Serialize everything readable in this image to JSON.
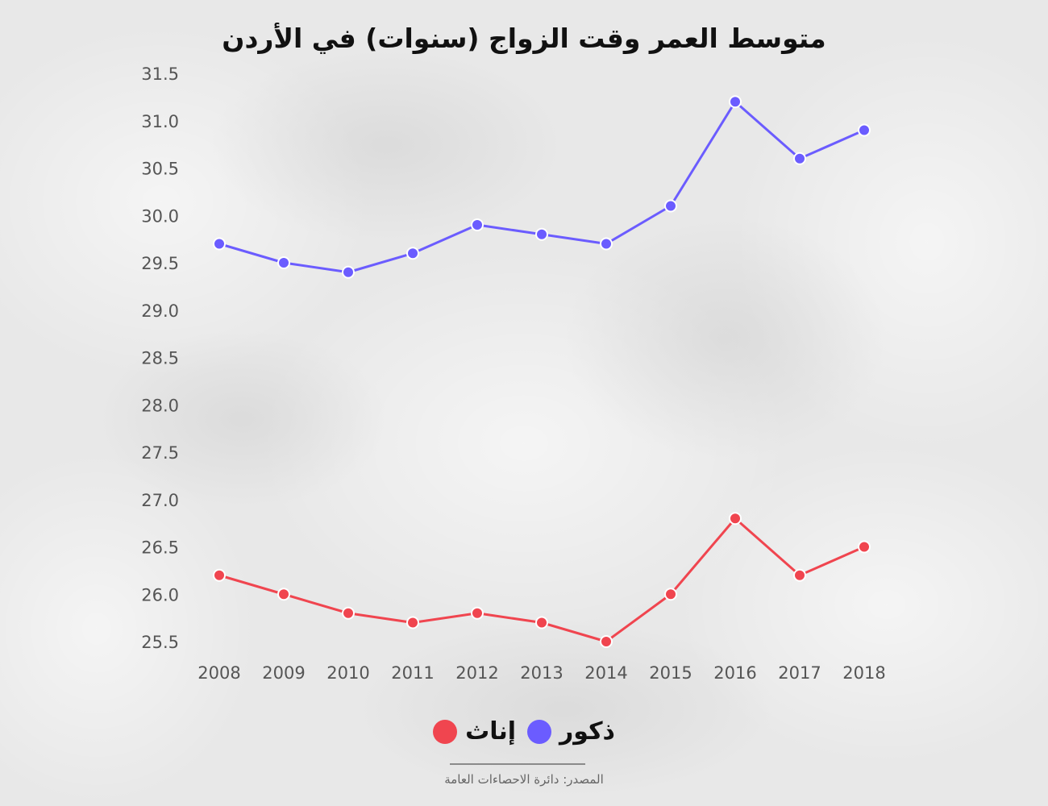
{
  "chart_data": {
    "type": "line",
    "title": "متوسط العمر وقت الزواج (سنوات) في الأردن",
    "categories": [
      "2008",
      "2009",
      "2010",
      "2011",
      "2012",
      "2013",
      "2014",
      "2015",
      "2016",
      "2017",
      "2018"
    ],
    "y_ticks": [
      "25.5",
      "26.0",
      "26.5",
      "27.0",
      "27.5",
      "28.0",
      "28.5",
      "29.0",
      "29.5",
      "30.0",
      "30.5",
      "31.0",
      "31.5"
    ],
    "ylim": [
      25.5,
      31.5
    ],
    "grid": false,
    "legend_position": "bottom",
    "series": [
      {
        "name": "ذكور",
        "color": "#6b5cff",
        "values": [
          29.7,
          29.5,
          29.4,
          29.6,
          29.9,
          29.8,
          29.7,
          30.1,
          31.2,
          30.6,
          30.9
        ]
      },
      {
        "name": "إناث",
        "color": "#f0454f",
        "values": [
          26.2,
          26.0,
          25.8,
          25.7,
          25.8,
          25.7,
          25.5,
          26.0,
          26.8,
          26.2,
          26.5
        ]
      }
    ]
  },
  "source": "المصدر: دائرة الاحصاءات العامة"
}
